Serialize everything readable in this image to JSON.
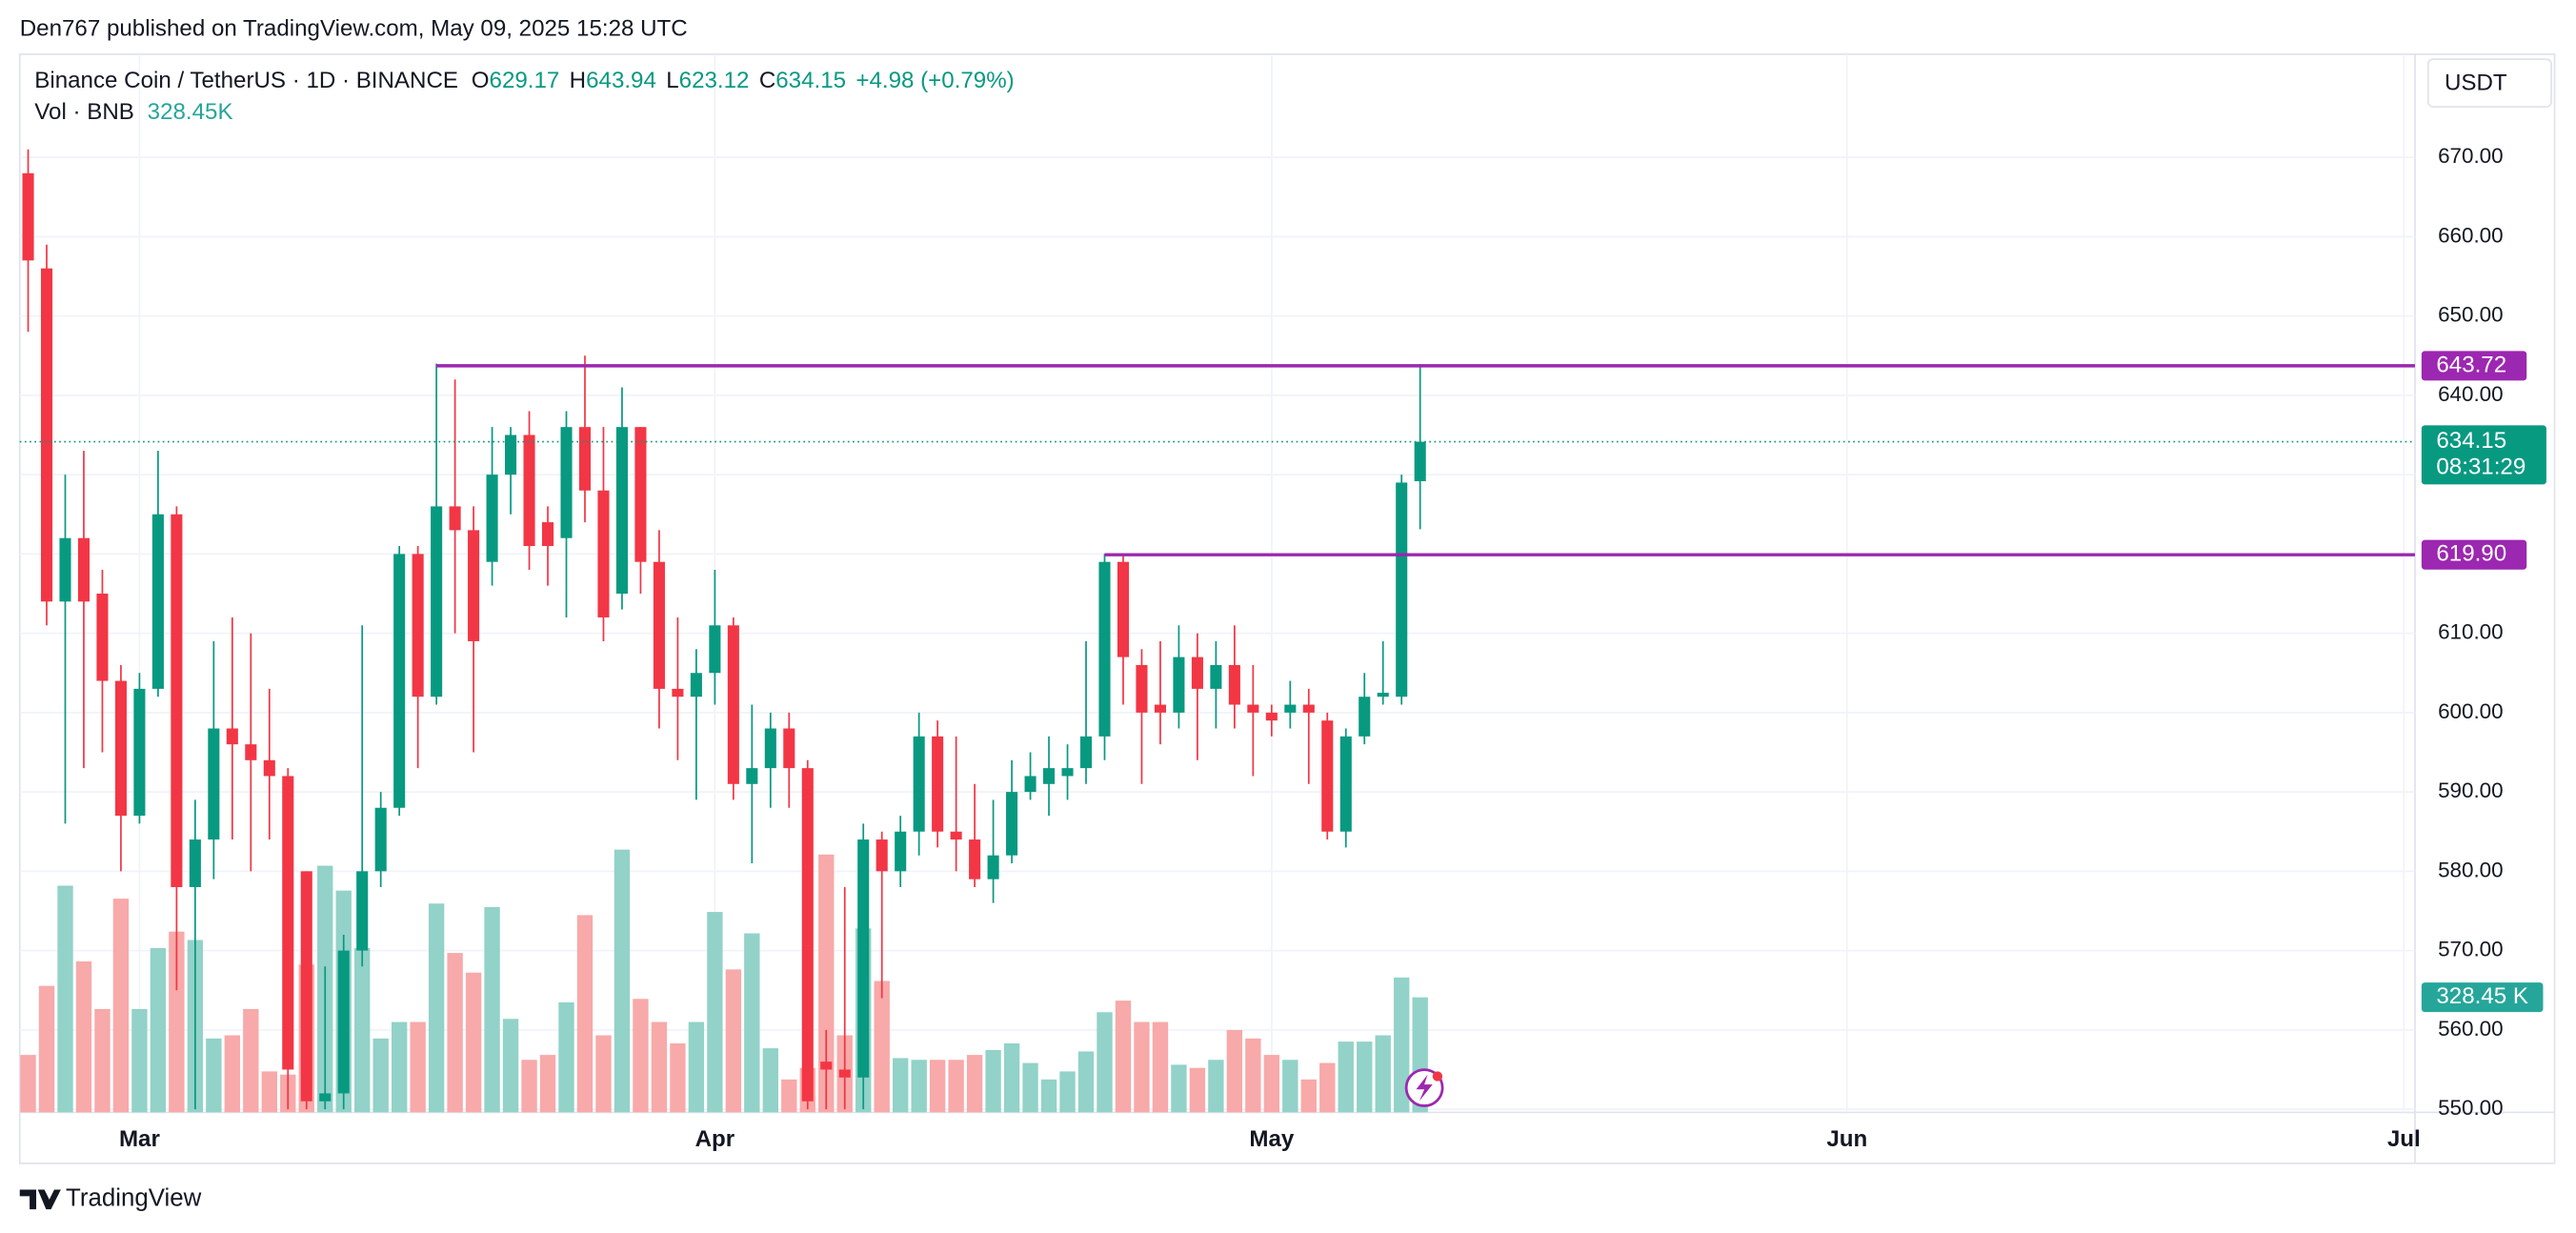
{
  "header": {
    "publisher": "Den767 published on TradingView.com, May 09, 2025 15:28 UTC",
    "brand": "TradingView"
  },
  "chart_data": {
    "type": "candlestick",
    "symbol": "Binance Coin / TetherUS · 1D · BINANCE",
    "ohlc_letters": [
      "O",
      "H",
      "L",
      "C"
    ],
    "change_label": "+4.98 (+0.79%)",
    "vol_title": "Vol · BNB",
    "vol_legend_label": "328.45K",
    "vol_badge_label": "328.45 K",
    "currency": "USDT",
    "countdown": "08:31:29",
    "up_color": "#089981",
    "down_color": "#f23645",
    "up_volume_color": "#92d2c8",
    "down_volume_color": "#f8a9a9",
    "open": [
      668,
      656,
      614,
      622,
      615,
      604,
      587,
      603,
      625,
      578,
      584,
      598,
      596,
      594,
      592,
      580,
      551,
      552,
      570,
      580,
      588,
      620,
      602,
      626,
      623,
      619,
      630,
      635,
      624,
      622,
      636,
      628,
      615,
      636,
      619,
      603,
      602,
      605,
      611,
      591,
      593,
      598,
      593,
      556,
      555,
      554,
      584,
      580,
      585,
      597,
      585,
      584,
      579,
      582,
      590,
      591,
      592,
      593,
      597,
      619,
      606,
      601,
      600,
      607,
      603,
      606,
      601,
      600,
      600,
      601,
      599,
      585,
      597,
      602,
      602,
      629.17
    ],
    "high": [
      671,
      659,
      630,
      633,
      618,
      606,
      605,
      633,
      626,
      589,
      609,
      612,
      610,
      603,
      593,
      580,
      568,
      572,
      611,
      590,
      621,
      621,
      644,
      642,
      626,
      636,
      636,
      638,
      626,
      638,
      645,
      636,
      641,
      636,
      623,
      612,
      608,
      618,
      612,
      601,
      600,
      600,
      594,
      560,
      578,
      586,
      585,
      587,
      600,
      599,
      597,
      591,
      589,
      594,
      595,
      597,
      596,
      609,
      620,
      620,
      608,
      609,
      611,
      610,
      609,
      611,
      606,
      601,
      604,
      603,
      600,
      598,
      605,
      609,
      630,
      643.94
    ],
    "low": [
      648,
      611,
      586,
      593,
      595,
      580,
      586,
      602,
      565,
      550,
      579,
      584,
      580,
      584,
      550,
      550,
      550,
      550,
      568,
      578,
      587,
      593,
      601,
      610,
      595,
      616,
      625,
      618,
      616,
      612,
      624,
      609,
      613,
      615,
      598,
      594,
      589,
      601,
      589,
      581,
      588,
      588,
      550,
      550,
      550,
      550,
      564,
      578,
      582,
      583,
      580,
      578,
      576,
      581,
      589,
      587,
      589,
      591,
      594,
      601,
      591,
      596,
      598,
      594,
      598,
      598,
      592,
      597,
      598,
      591,
      584,
      583,
      596,
      601,
      601,
      623.12
    ],
    "close": [
      657,
      614,
      622,
      614,
      604,
      587,
      603,
      625,
      578,
      584,
      598,
      596,
      594,
      592,
      555,
      551,
      552,
      570,
      580,
      588,
      620,
      602,
      626,
      623,
      609,
      630,
      635,
      621,
      621,
      636,
      628,
      612,
      636,
      619,
      603,
      602,
      605,
      611,
      591,
      593,
      598,
      593,
      551,
      555,
      554,
      584,
      580,
      585,
      597,
      585,
      584,
      579,
      582,
      590,
      592,
      593,
      593,
      597,
      619,
      607,
      600,
      600,
      607,
      603,
      606,
      601,
      600,
      599,
      601,
      600,
      585,
      597,
      602,
      602.5,
      629,
      634.15
    ],
    "volume": [
      164,
      361,
      647,
      431,
      295,
      610,
      295,
      469,
      516,
      492,
      211,
      220,
      295,
      117,
      108,
      422,
      704,
      633,
      469,
      211,
      258,
      258,
      596,
      455,
      399,
      586,
      267,
      150,
      164,
      314,
      563,
      220,
      750,
      324,
      258,
      197,
      258,
      572,
      408,
      511,
      183,
      94,
      127,
      736,
      220,
      525,
      375,
      155,
      150,
      150,
      150,
      164,
      178,
      197,
      141,
      94,
      117,
      174,
      286,
      319,
      258,
      258,
      136,
      127,
      150,
      235,
      211,
      164,
      150,
      94,
      141,
      202,
      202,
      220,
      385,
      328.45
    ],
    "xlim": [
      -0.45,
      128.6
    ],
    "xticks": [
      {
        "value": 6,
        "label": "Mar"
      },
      {
        "value": 37,
        "label": "Apr"
      },
      {
        "value": 67,
        "label": "May"
      },
      {
        "value": 98,
        "label": "Jun"
      },
      {
        "value": 128,
        "label": "Jul"
      }
    ],
    "ylim": [
      549.6,
      683
    ],
    "yticks": [
      {
        "value": 550,
        "label": "550.00"
      },
      {
        "value": 560,
        "label": "560.00"
      },
      {
        "value": 570,
        "label": "570.00"
      },
      {
        "value": 580,
        "label": "580.00"
      },
      {
        "value": 590,
        "label": "590.00"
      },
      {
        "value": 600,
        "label": "600.00"
      },
      {
        "value": 610,
        "label": "610.00"
      },
      {
        "value": 620,
        "label": "620.00"
      },
      {
        "value": 630,
        "label": "630.00"
      },
      {
        "value": 640,
        "label": "640.00"
      },
      {
        "value": 650,
        "label": "650.00"
      },
      {
        "value": 660,
        "label": "660.00"
      },
      {
        "value": 670,
        "label": "670.00"
      }
    ],
    "vol_lim": [
      0,
      3020
    ],
    "grid": true,
    "levels": [
      {
        "value": 643.72,
        "label": "643.72",
        "x": 22,
        "color": "#9c27b0"
      },
      {
        "value": 619.9,
        "label": "619.90",
        "x": 58,
        "color": "#9c27b0"
      }
    ]
  }
}
